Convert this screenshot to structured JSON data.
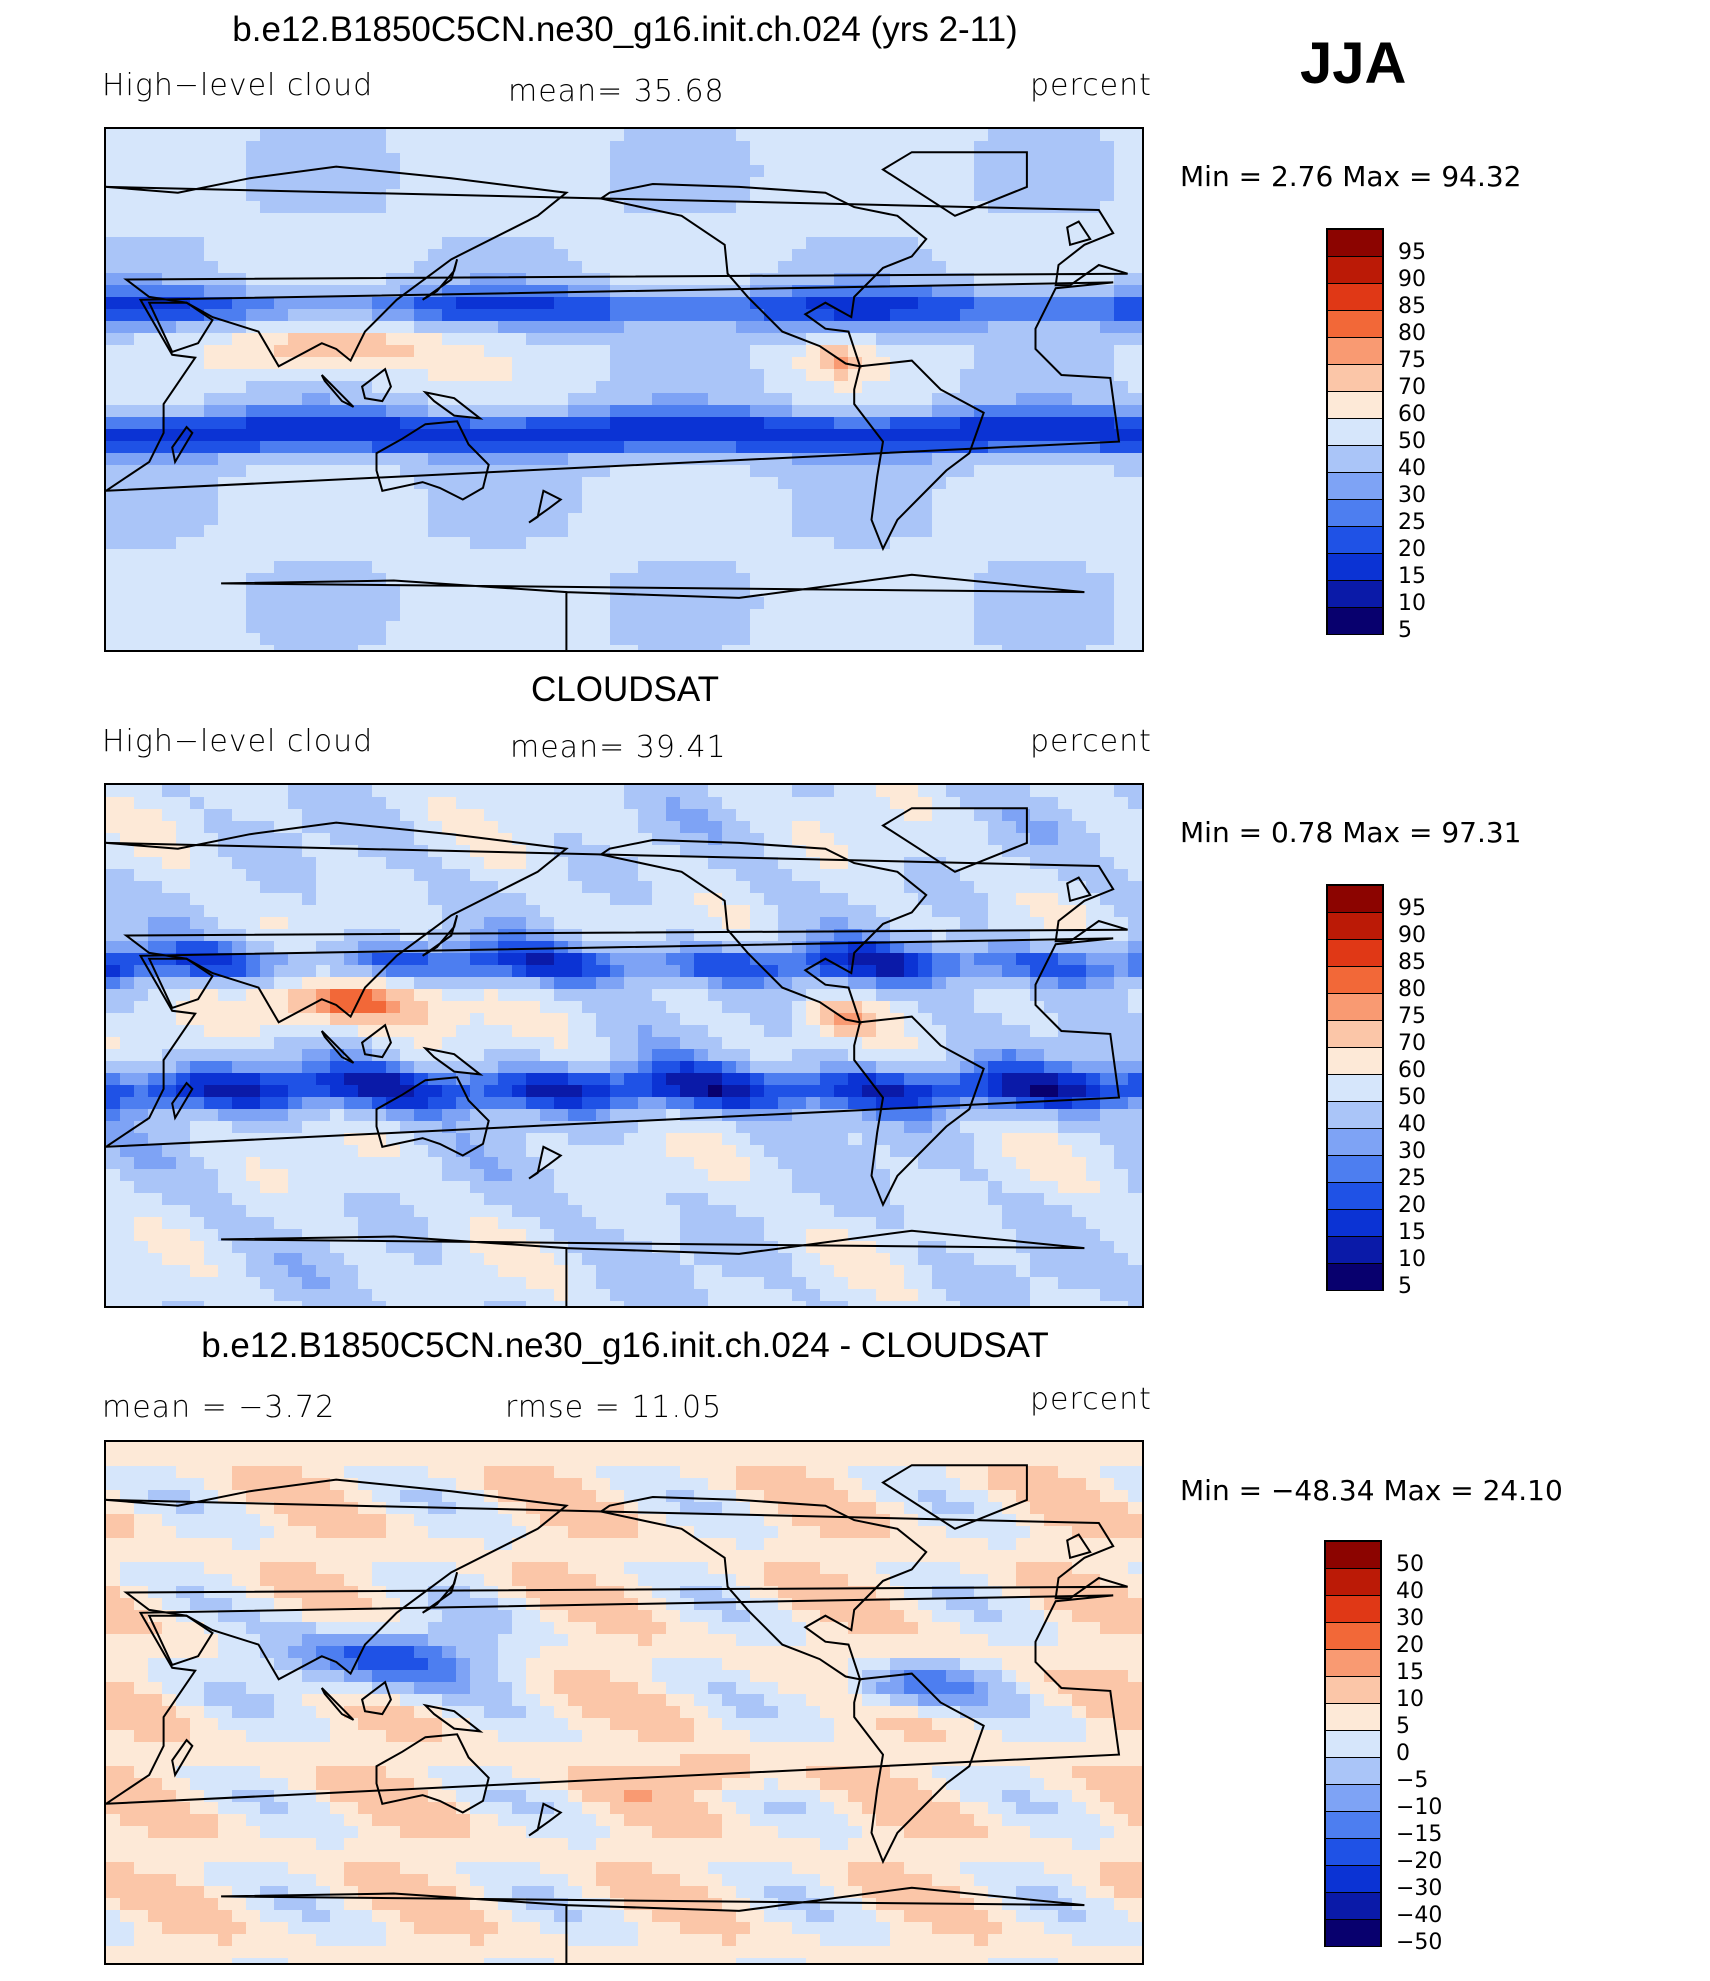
{
  "season": "JJA",
  "palette": {
    "levels12": [
      "#08006e",
      "#0a1aa8",
      "#0b33d4",
      "#1f52e6",
      "#4d7ef0",
      "#7ea3f5",
      "#aac5f8",
      "#d6e6fb",
      "#fde9d7",
      "#fbc6a8",
      "#f99a72",
      "#f26838",
      "#e03816",
      "#bb1a06",
      "#8c0400"
    ],
    "diff": [
      "#08006e",
      "#0a1aa8",
      "#0b33d4",
      "#1f52e6",
      "#4d7ef0",
      "#7ea3f5",
      "#aac5f8",
      "#d6e6fb",
      "#fde9d7",
      "#fbc6a8",
      "#f99a72",
      "#f26838",
      "#e03816",
      "#bb1a06",
      "#8c0400"
    ]
  },
  "panels": [
    {
      "title": "b.e12.B1850C5CN.ne30_g16.init.ch.024 (yrs 2-11)",
      "left_label": "High−level cloud",
      "center_label": "mean=   35.68",
      "right_label": "percent",
      "minmax": "Min =    2.76  Max =    94.32",
      "colorbar_labels": [
        "95",
        "90",
        "85",
        "80",
        "75",
        "70",
        "60",
        "50",
        "40",
        "30",
        "25",
        "20",
        "15",
        "10",
        "5"
      ],
      "stats": {
        "mean": 35.68,
        "min": 2.76,
        "max": 94.32
      }
    },
    {
      "title": "CLOUDSAT",
      "left_label": "High−level cloud",
      "center_label": "mean=   39.41",
      "right_label": "percent",
      "minmax": "Min =    0.78  Max =    97.31",
      "colorbar_labels": [
        "95",
        "90",
        "85",
        "80",
        "75",
        "70",
        "60",
        "50",
        "40",
        "30",
        "25",
        "20",
        "15",
        "10",
        "5"
      ],
      "stats": {
        "mean": 39.41,
        "min": 0.78,
        "max": 97.31
      }
    },
    {
      "title": "b.e12.B1850C5CN.ne30_g16.init.ch.024 - CLOUDSAT",
      "left_label": "mean  =    −3.72",
      "center_label": "rmse  =    11.05",
      "right_label": "percent",
      "minmax": "Min  =  −48.34  Max  =    24.10",
      "colorbar_labels": [
        "50",
        "40",
        "30",
        "20",
        "15",
        "10",
        "5",
        "0",
        "−5",
        "−10",
        "−15",
        "−20",
        "−30",
        "−40",
        "−50"
      ],
      "stats": {
        "mean": -3.72,
        "rmse": 11.05,
        "min": -48.34,
        "max": 24.1
      }
    }
  ],
  "chart_data": [
    {
      "type": "heatmap",
      "title": "b.e12.B1850C5CN.ne30_g16.init.ch.024 (yrs 2-11)",
      "subtitle": "High−level cloud",
      "units": "percent",
      "mean": 35.68,
      "min": 2.76,
      "max": 94.32,
      "contour_levels": [
        5,
        10,
        15,
        20,
        25,
        30,
        40,
        50,
        60,
        70,
        75,
        80,
        85,
        90,
        95
      ],
      "legend": "right"
    },
    {
      "type": "heatmap",
      "title": "CLOUDSAT",
      "subtitle": "High−level cloud",
      "units": "percent",
      "mean": 39.41,
      "min": 0.78,
      "max": 97.31,
      "contour_levels": [
        5,
        10,
        15,
        20,
        25,
        30,
        40,
        50,
        60,
        70,
        75,
        80,
        85,
        90,
        95
      ],
      "legend": "right"
    },
    {
      "type": "heatmap",
      "title": "b.e12.B1850C5CN.ne30_g16.init.ch.024 - CLOUDSAT",
      "units": "percent",
      "mean": -3.72,
      "rmse": 11.05,
      "min": -48.34,
      "max": 24.1,
      "contour_levels": [
        -50,
        -40,
        -30,
        -20,
        -15,
        -10,
        -5,
        0,
        5,
        10,
        15,
        20,
        30,
        40,
        50
      ],
      "legend": "right"
    }
  ]
}
